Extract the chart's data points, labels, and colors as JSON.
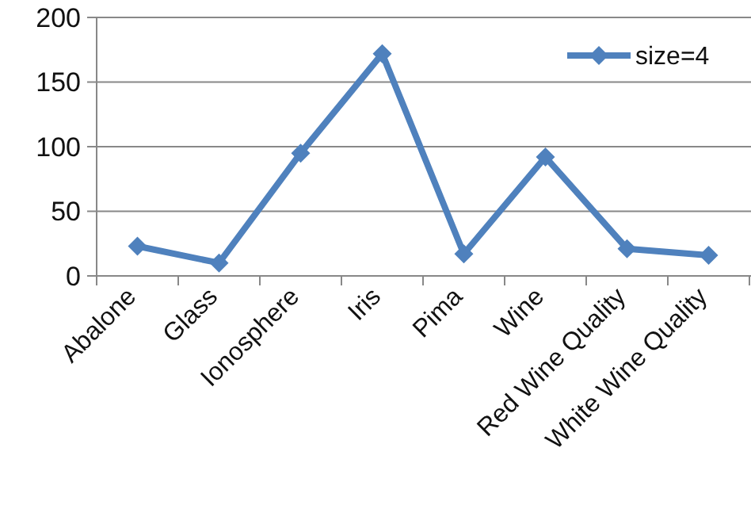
{
  "chart_data": {
    "type": "line",
    "categories": [
      "Abalone",
      "Glass",
      "Ionosphere",
      "Iris",
      "Pima",
      "Wine",
      "Red Wine Quality",
      "White Wine Quality"
    ],
    "series": [
      {
        "name": "size=4",
        "color": "#4f81bd",
        "values": [
          23,
          10,
          95,
          172,
          17,
          92,
          21,
          16
        ]
      }
    ],
    "ylim": [
      0,
      200
    ],
    "yticks": [
      0,
      50,
      100,
      150,
      200
    ],
    "grid": "y",
    "legend": "top right",
    "marker": "diamond",
    "line_style": "solid"
  }
}
